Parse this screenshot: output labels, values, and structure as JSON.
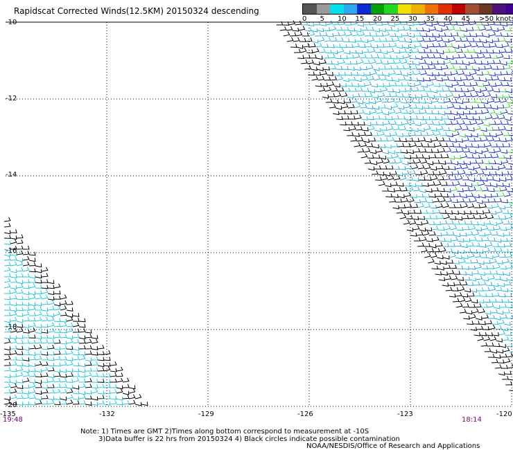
{
  "title": "Rapidscat Corrected Winds(12.5KM) 20150324 descending",
  "legend": {
    "colors": [
      "#555555",
      "#9a9a9a",
      "#00e0e8",
      "#2aa8f0",
      "#0a2ad8",
      "#00a000",
      "#20d820",
      "#f0e000",
      "#f0b000",
      "#f07000",
      "#e03000",
      "#c00000",
      "#a05030",
      "#6a3820",
      "#501080",
      "#400090"
    ],
    "labels": [
      "0",
      "5",
      "10",
      "15",
      "20",
      "25",
      "30",
      "35",
      "40",
      "45",
      ">50 knots"
    ]
  },
  "y_labels": [
    "-10",
    "-12",
    "-14",
    "-16",
    "-18",
    "-20"
  ],
  "x_labels": [
    "-135",
    "-132",
    "-129",
    "-126",
    "-123",
    "-120"
  ],
  "times": {
    "left": "19:48",
    "right": "18:14"
  },
  "notes": {
    "line1": "Note: 1) Times are GMT 2)Times along bottom correspond to measurement at -10S",
    "line2": "3)Data buffer is 22 hrs from 20150324 4) Black circles indicate possible contamination"
  },
  "credit": "NOAA/NESDIS/Office of Research and Applications",
  "chart_data": {
    "type": "wind-barb-map",
    "xlim": [
      -135,
      -120
    ],
    "ylim": [
      -20,
      -10
    ],
    "grid": "dotted, every 3 deg lon and 2 deg lat",
    "swaths": [
      {
        "name": "east swath",
        "time": "18:14",
        "dominant_speed_knots": "10-20"
      },
      {
        "name": "west swath",
        "time": "19:48",
        "dominant_speed_knots": "5-10"
      }
    ]
  }
}
